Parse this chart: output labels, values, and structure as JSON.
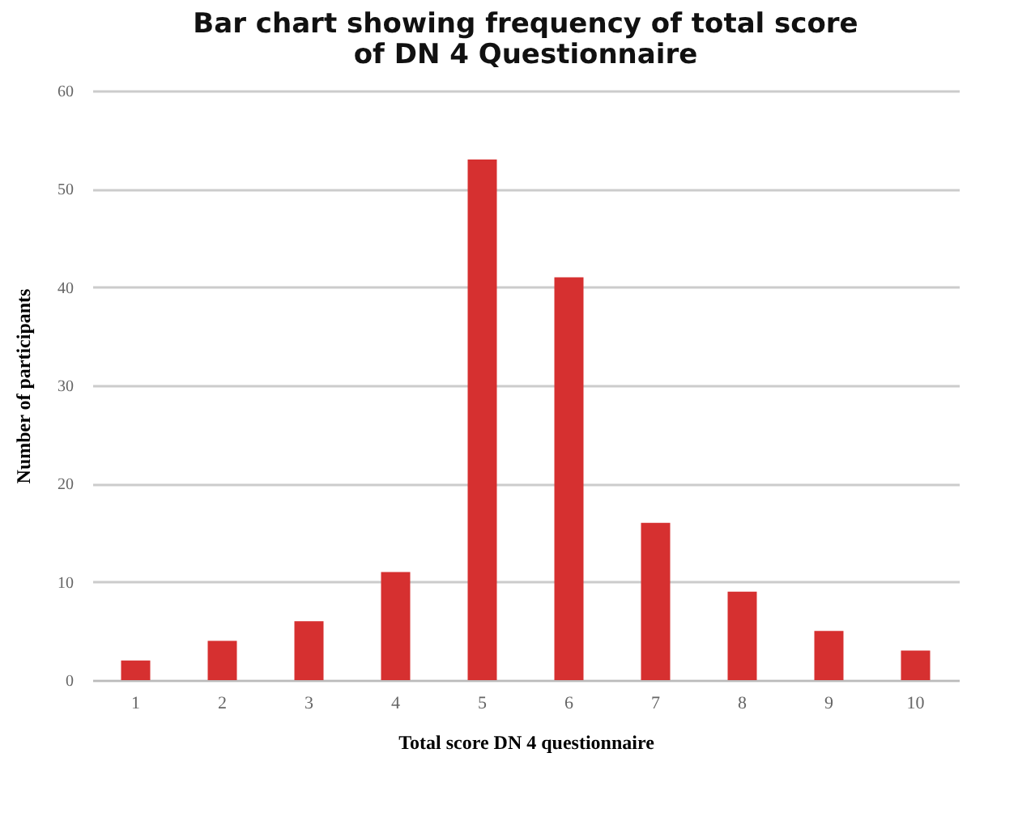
{
  "chart_data": {
    "type": "bar",
    "title": "Bar chart showing frequency of total score\nof DN 4 Questionnaire",
    "xlabel": "Total score DN 4 questionnaire",
    "ylabel": "Number of participants",
    "categories": [
      "1",
      "2",
      "3",
      "4",
      "5",
      "6",
      "7",
      "8",
      "9",
      "10"
    ],
    "values": [
      2,
      4,
      6,
      11,
      53,
      41,
      16,
      9,
      5,
      3
    ],
    "color": "#d63030",
    "ylim": [
      0,
      60
    ],
    "yticks": [
      0,
      10,
      20,
      30,
      40,
      50,
      60
    ],
    "grid": "y"
  }
}
